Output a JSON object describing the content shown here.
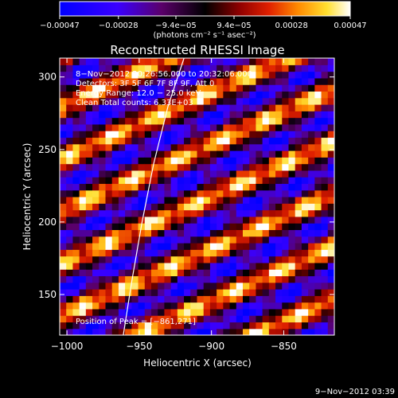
{
  "chart_data": {
    "type": "heatmap",
    "title": "Reconstructed RHESSI Image",
    "xlabel": "Heliocentric X (arcsec)",
    "ylabel": "Heliocentric Y (arcsec)",
    "xlim": [
      -1005,
      -815
    ],
    "ylim": [
      122,
      313
    ],
    "x_ticks": [
      -1000,
      -950,
      -900,
      -850
    ],
    "x_tick_labels": [
      "−1000",
      "−950",
      "−900",
      "−850"
    ],
    "y_ticks": [
      150,
      200,
      250,
      300
    ],
    "y_tick_labels": [
      "150",
      "200",
      "250",
      "300"
    ],
    "colorbar": {
      "range": [
        -0.00047,
        0.00047
      ],
      "ticks": [
        -0.00047,
        -0.00028,
        -9.4e-05,
        9.4e-05,
        0.00028,
        0.00047
      ],
      "tick_labels": [
        "−0.00047",
        "−0.00028",
        "−9.4e−05",
        "9.4e−05",
        "0.00028",
        "0.00047"
      ],
      "unit_label": "(photons cm⁻² s⁻¹ asec⁻²)"
    },
    "annotations": {
      "time": "8−Nov−2012 20:26:56.000 to 20:32:06.000",
      "detectors": "Detectors: 3F 5F 6F 7F 8F 9F, Att 0",
      "energy": "Energy Range: 12.0 − 25.0 keV",
      "clean": "Clean     Total counts: 6.33E+03",
      "peak": "Position of Peak = [−861,271]"
    },
    "stripes": {
      "angle_deg": 24,
      "period_arcsec": 33,
      "peak": [
        -861,
        271
      ],
      "peak_value": 0.00047
    },
    "limb_line": {
      "x": [
        -961,
        -955,
        -948,
        -940,
        -930,
        -919
      ],
      "y": [
        122,
        160,
        200,
        240,
        280,
        313
      ]
    },
    "colors": {
      "low": "#0000ff",
      "mid": "#000000",
      "high": "#ffffff",
      "background": "#000000"
    }
  },
  "footer": {
    "date": "9−Nov−2012 03:39"
  }
}
